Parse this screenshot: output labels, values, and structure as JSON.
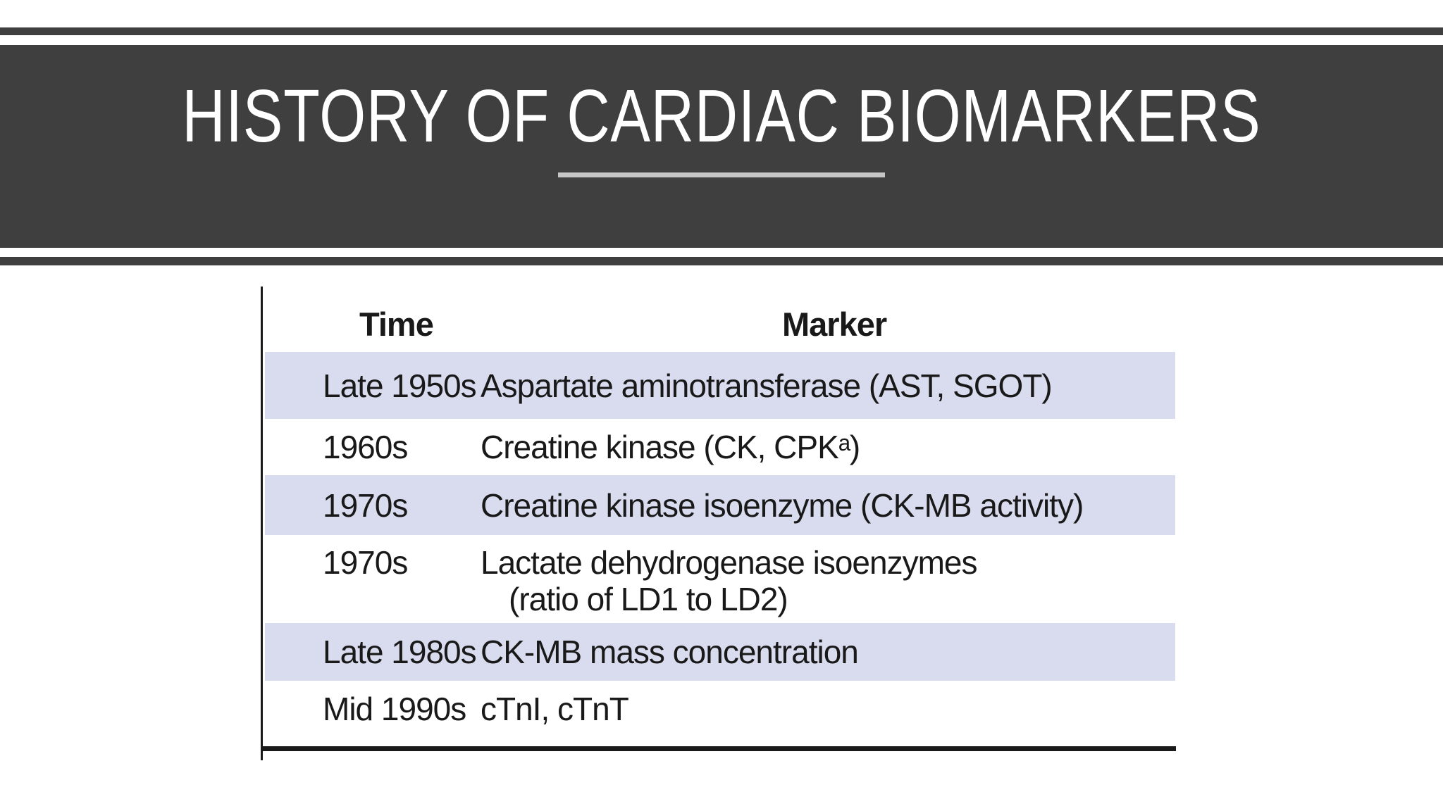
{
  "slide": {
    "title": "HISTORY OF CARDIAC BIOMARKERS"
  },
  "colors": {
    "band": "#3f3f3f",
    "underline_gray": "#c6c6c6",
    "row_shade": "#d9dcee",
    "table_text": "#191919"
  },
  "table": {
    "headers": {
      "time": "Time",
      "marker": "Marker"
    },
    "rows": [
      {
        "time": "Late 1950s",
        "marker": "Aspartate aminotransferase (AST, SGOT)"
      },
      {
        "time": "1960s",
        "marker": "Creatine kinase (CK, CPKᵃ)"
      },
      {
        "time": "1970s",
        "marker": "Creatine kinase isoenzyme (CK-MB activity)"
      },
      {
        "time": "1970s",
        "marker": "Lactate dehydrogenase isoenzymes",
        "marker_line2": "(ratio of LD1 to LD2)"
      },
      {
        "time": "Late 1980s",
        "marker": "CK-MB mass concentration"
      },
      {
        "time": "Mid 1990s",
        "marker": "cTnI, cTnT"
      }
    ]
  }
}
